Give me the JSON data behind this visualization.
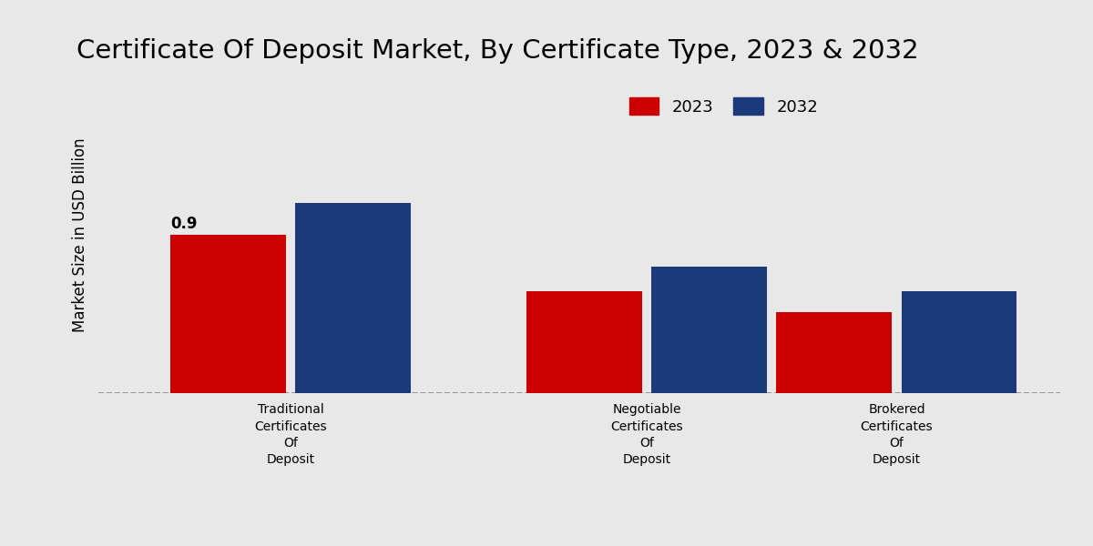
{
  "title": "Certificate Of Deposit Market, By Certificate Type, 2023 & 2032",
  "ylabel": "Market Size in USD Billion",
  "categories": [
    "Traditional\nCertificates\nOf\nDeposit",
    "Negotiable\nCertificates\nOf\nDeposit",
    "Brokered\nCertificates\nOf\nDeposit"
  ],
  "values_2023": [
    0.9,
    0.58,
    0.46
  ],
  "values_2032": [
    1.08,
    0.72,
    0.58
  ],
  "annotation_2023": "0.9",
  "color_2023": "#cc0000",
  "color_2032": "#1b3a7a",
  "background_color": "#e8e8e8",
  "bar_width": 0.12,
  "group_positions": [
    0.25,
    0.62,
    0.88
  ],
  "legend_labels": [
    "2023",
    "2032"
  ],
  "title_fontsize": 21,
  "ylabel_fontsize": 12,
  "tick_label_fontsize": 10,
  "legend_fontsize": 13,
  "annotation_fontsize": 12,
  "ylim": [
    0,
    1.8
  ],
  "xlim": [
    0.05,
    1.05
  ]
}
